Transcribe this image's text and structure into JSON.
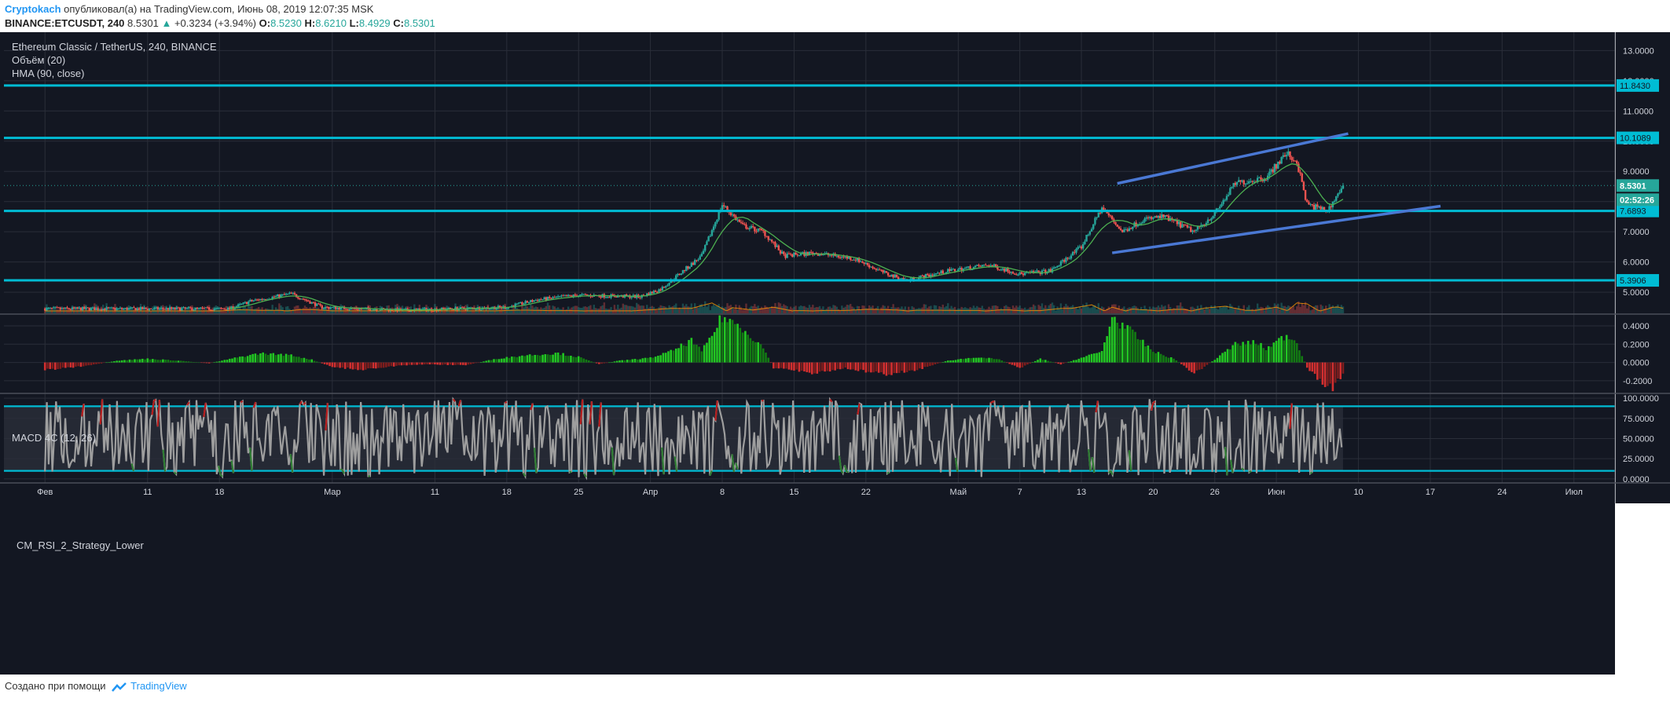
{
  "header": {
    "author": "Cryptokach",
    "published_text": "опубликовал(а) на TradingView.com, Июнь 08, 2019 12:07:35 MSK",
    "symbol": "BINANCE:ETCUSDT, 240",
    "last": "8.5301",
    "change_arrow": "▲",
    "change": "+0.3234 (+3.94%)",
    "open_label": "O:",
    "open": "8.5230",
    "high_label": "H:",
    "high": "8.6210",
    "low_label": "L:",
    "low": "8.4929",
    "close_label": "C:",
    "close": "8.5301"
  },
  "legend": {
    "title": "Ethereum Classic / TetherUS, 240, BINANCE",
    "volume": "Объём (20)",
    "hma": "HMA (90, close)",
    "macd": "MACD 4C (12, 26)",
    "rsi": "CM_RSI_2_Strategy_Lower"
  },
  "footer": {
    "created_with": "Создано при помощи",
    "brand": "TradingView"
  },
  "colors": {
    "background": "#131722",
    "grid": "#2a2e39",
    "candle_up": "#26a69a",
    "candle_down": "#ef5350",
    "level_line": "#00bcd4",
    "channel": "#4a78d4",
    "hma": "#4caf50",
    "macd_green": "#1db41d",
    "macd_red": "#c62828",
    "rsi_line": "#9e9e9e"
  },
  "chart_data": [
    {
      "type": "candlestick",
      "title": "Ethereum Classic / TetherUS, 240, BINANCE",
      "y_ticks": [
        "13.0000",
        "12.0000",
        "11.0000",
        "10.0000",
        "9.0000",
        "8.0000",
        "7.0000",
        "6.0000",
        "5.0000"
      ],
      "ylim": [
        4.3,
        13.4
      ],
      "x_ticks": [
        "Фев",
        "11",
        "18",
        "Мар",
        "11",
        "18",
        "25",
        "Апр",
        "8",
        "15",
        "22",
        "Май",
        "7",
        "13",
        "20",
        "26",
        "Июн",
        "10",
        "17",
        "24",
        "Июл"
      ],
      "x_tick_days": [
        0,
        10,
        17,
        28,
        38,
        45,
        52,
        59,
        66,
        73,
        80,
        89,
        95,
        101,
        108,
        114,
        120,
        128,
        135,
        142,
        149
      ],
      "xlim_days": [
        -4,
        153
      ],
      "last_day": 126.5,
      "price_path": [
        [
          0,
          4.45
        ],
        [
          18,
          4.45
        ],
        [
          20,
          4.7
        ],
        [
          24,
          4.95
        ],
        [
          27,
          4.5
        ],
        [
          35,
          4.4
        ],
        [
          45,
          4.5
        ],
        [
          48,
          4.75
        ],
        [
          52,
          4.9
        ],
        [
          58,
          4.85
        ],
        [
          60,
          5.1
        ],
        [
          64,
          6.2
        ],
        [
          66,
          7.9
        ],
        [
          68,
          7.2
        ],
        [
          70,
          7.0
        ],
        [
          72,
          6.2
        ],
        [
          75,
          6.3
        ],
        [
          79,
          6.1
        ],
        [
          82,
          5.6
        ],
        [
          84,
          5.4
        ],
        [
          88,
          5.7
        ],
        [
          92,
          5.9
        ],
        [
          95,
          5.6
        ],
        [
          98,
          5.7
        ],
        [
          101,
          6.5
        ],
        [
          103,
          7.8
        ],
        [
          105,
          7.0
        ],
        [
          107,
          7.4
        ],
        [
          109,
          7.5
        ],
        [
          112,
          7.0
        ],
        [
          114,
          7.6
        ],
        [
          116,
          8.6
        ],
        [
          119,
          8.8
        ],
        [
          121,
          9.6
        ],
        [
          122,
          9.3
        ],
        [
          123,
          7.9
        ],
        [
          125,
          7.7
        ],
        [
          126.5,
          8.53
        ]
      ],
      "horizontal_levels": [
        {
          "price": 11.843,
          "label": "11.8430"
        },
        {
          "price": 10.1089,
          "label": "10.1089"
        },
        {
          "price": 7.6893,
          "label": "7.6893"
        },
        {
          "price": 5.3906,
          "label": "5.3906"
        }
      ],
      "current_price": {
        "price": 8.5301,
        "label": "8.5301",
        "countdown": "02:52:26"
      },
      "channel_upper": [
        [
          104.5,
          8.6
        ],
        [
          127,
          10.25
        ]
      ],
      "channel_lower": [
        [
          104,
          6.3
        ],
        [
          136,
          7.85
        ]
      ]
    },
    {
      "type": "bar",
      "title": "MACD 4C (12, 26)",
      "y_ticks": [
        "0.4000",
        "0.2000",
        "0.0000",
        "-0.2000"
      ],
      "ylim": [
        -0.33,
        0.52
      ],
      "values_by_day": [
        [
          0,
          -0.08
        ],
        [
          4,
          -0.04
        ],
        [
          7,
          0.02
        ],
        [
          10,
          0.04
        ],
        [
          13,
          0.02
        ],
        [
          16,
          -0.01
        ],
        [
          19,
          0.06
        ],
        [
          21,
          0.1
        ],
        [
          24,
          0.08
        ],
        [
          26,
          0.03
        ],
        [
          28,
          -0.05
        ],
        [
          31,
          -0.08
        ],
        [
          34,
          -0.04
        ],
        [
          37,
          -0.02
        ],
        [
          41,
          -0.03
        ],
        [
          44,
          0.04
        ],
        [
          47,
          0.08
        ],
        [
          50,
          0.1
        ],
        [
          52,
          0.06
        ],
        [
          54,
          -0.02
        ],
        [
          56,
          0.02
        ],
        [
          59,
          0.05
        ],
        [
          61,
          0.12
        ],
        [
          63,
          0.24
        ],
        [
          64,
          0.12
        ],
        [
          65,
          0.3
        ],
        [
          66,
          0.5
        ],
        [
          68,
          0.38
        ],
        [
          70,
          0.16
        ],
        [
          71,
          -0.06
        ],
        [
          73,
          -0.08
        ],
        [
          75,
          -0.12
        ],
        [
          78,
          -0.06
        ],
        [
          80,
          -0.1
        ],
        [
          82,
          -0.13
        ],
        [
          85,
          -0.08
        ],
        [
          88,
          0.02
        ],
        [
          91,
          0.06
        ],
        [
          93,
          0.03
        ],
        [
          95,
          -0.06
        ],
        [
          97,
          0.04
        ],
        [
          99,
          -0.02
        ],
        [
          101,
          0.05
        ],
        [
          103,
          0.12
        ],
        [
          104,
          0.5
        ],
        [
          106,
          0.32
        ],
        [
          108,
          0.12
        ],
        [
          110,
          0.04
        ],
        [
          111,
          -0.04
        ],
        [
          112,
          -0.12
        ],
        [
          114,
          0.03
        ],
        [
          116,
          0.2
        ],
        [
          118,
          0.22
        ],
        [
          119,
          0.15
        ],
        [
          121,
          0.3
        ],
        [
          122,
          0.22
        ],
        [
          123,
          -0.06
        ],
        [
          124.5,
          -0.22
        ],
        [
          125.5,
          -0.28
        ],
        [
          126.5,
          -0.12
        ]
      ]
    },
    {
      "type": "line",
      "title": "CM_RSI_2_Strategy_Lower",
      "y_ticks": [
        "100.0000",
        "75.0000",
        "50.0000",
        "25.0000",
        "0.0000"
      ],
      "ylim": [
        -5,
        105
      ],
      "bands": [
        90,
        10
      ]
    }
  ]
}
